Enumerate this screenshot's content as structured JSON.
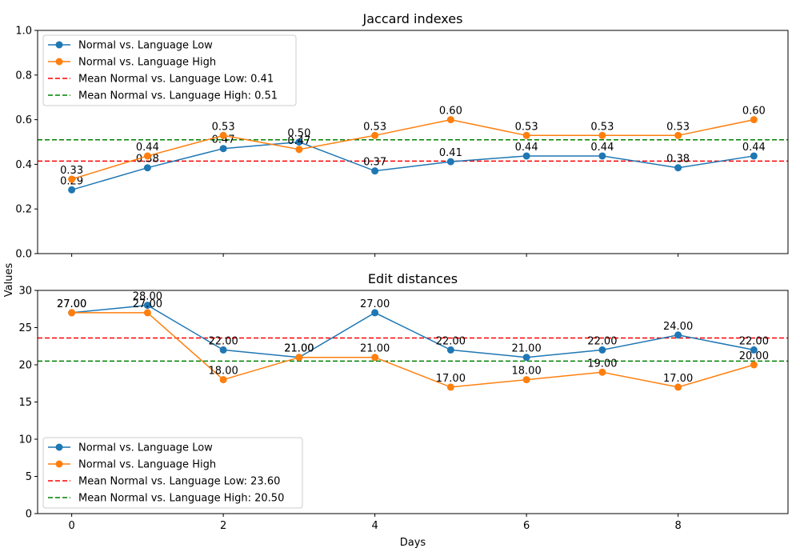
{
  "chart_data": [
    {
      "type": "line",
      "title": "Jaccard indexes",
      "xlabel": "",
      "ylabel": "Values",
      "x": [
        0,
        1,
        2,
        3,
        4,
        5,
        6,
        7,
        8,
        9
      ],
      "xlim": [
        -0.45,
        9.45
      ],
      "ylim": [
        0,
        1.0
      ],
      "xticks": [
        0,
        2,
        4,
        6,
        8
      ],
      "yticks": [
        0.0,
        0.2,
        0.4,
        0.6,
        0.8,
        1.0
      ],
      "ytick_labels": [
        "0.0",
        "0.2",
        "0.4",
        "0.6",
        "0.8",
        "1.0"
      ],
      "series": [
        {
          "name": "Normal vs. Language Low",
          "color": "#1f77b4",
          "values": [
            0.2857,
            0.3846,
            0.4706,
            0.5,
            0.3704,
            0.4118,
            0.4375,
            0.4375,
            0.3846,
            0.4375
          ],
          "labels": [
            "0.29",
            "0.38",
            "0.47",
            "0.50",
            "0.37",
            "0.41",
            "0.44",
            "0.44",
            "0.38",
            "0.44"
          ]
        },
        {
          "name": "Normal vs. Language High",
          "color": "#ff7f0e",
          "values": [
            0.3333,
            0.4375,
            0.5294,
            0.4667,
            0.5294,
            0.6,
            0.5294,
            0.5294,
            0.5294,
            0.6
          ],
          "labels": [
            "0.33",
            "0.44",
            "0.53",
            "0.47",
            "0.53",
            "0.60",
            "0.53",
            "0.53",
            "0.53",
            "0.60"
          ]
        }
      ],
      "means": [
        {
          "name": "Mean Normal vs. Language Low: 0.41",
          "value": 0.4144,
          "color": "#ff0000"
        },
        {
          "name": "Mean Normal vs. Language High: 0.51",
          "value": 0.5099,
          "color": "#008000"
        }
      ],
      "legend": "top-left"
    },
    {
      "type": "line",
      "title": "Edit distances",
      "xlabel": "Days",
      "ylabel": "Values",
      "x": [
        0,
        1,
        2,
        3,
        4,
        5,
        6,
        7,
        8,
        9
      ],
      "xlim": [
        -0.45,
        9.45
      ],
      "ylim": [
        0,
        30
      ],
      "xticks": [
        0,
        2,
        4,
        6,
        8
      ],
      "xtick_labels": [
        "0",
        "2",
        "4",
        "6",
        "8"
      ],
      "yticks": [
        0,
        5,
        10,
        15,
        20,
        25,
        30
      ],
      "ytick_labels": [
        "0",
        "5",
        "10",
        "15",
        "20",
        "25",
        "30"
      ],
      "series": [
        {
          "name": "Normal vs. Language Low",
          "color": "#1f77b4",
          "values": [
            27,
            28,
            22,
            21,
            27,
            22,
            21,
            22,
            24,
            22
          ],
          "labels": [
            "27.00",
            "28.00",
            "22.00",
            "21.00",
            "27.00",
            "22.00",
            "21.00",
            "22.00",
            "24.00",
            "22.00"
          ]
        },
        {
          "name": "Normal vs. Language High",
          "color": "#ff7f0e",
          "values": [
            27,
            27,
            18,
            21,
            21,
            17,
            18,
            19,
            17,
            20
          ],
          "labels": [
            "27.00",
            "27.00",
            "18.00",
            "21.00",
            "21.00",
            "17.00",
            "18.00",
            "19.00",
            "17.00",
            "20.00"
          ]
        }
      ],
      "means": [
        {
          "name": "Mean Normal vs. Language Low: 23.60",
          "value": 23.6,
          "color": "#ff0000"
        },
        {
          "name": "Mean Normal vs. Language High: 20.50",
          "value": 20.5,
          "color": "#008000"
        }
      ],
      "legend": "bottom-left"
    }
  ]
}
